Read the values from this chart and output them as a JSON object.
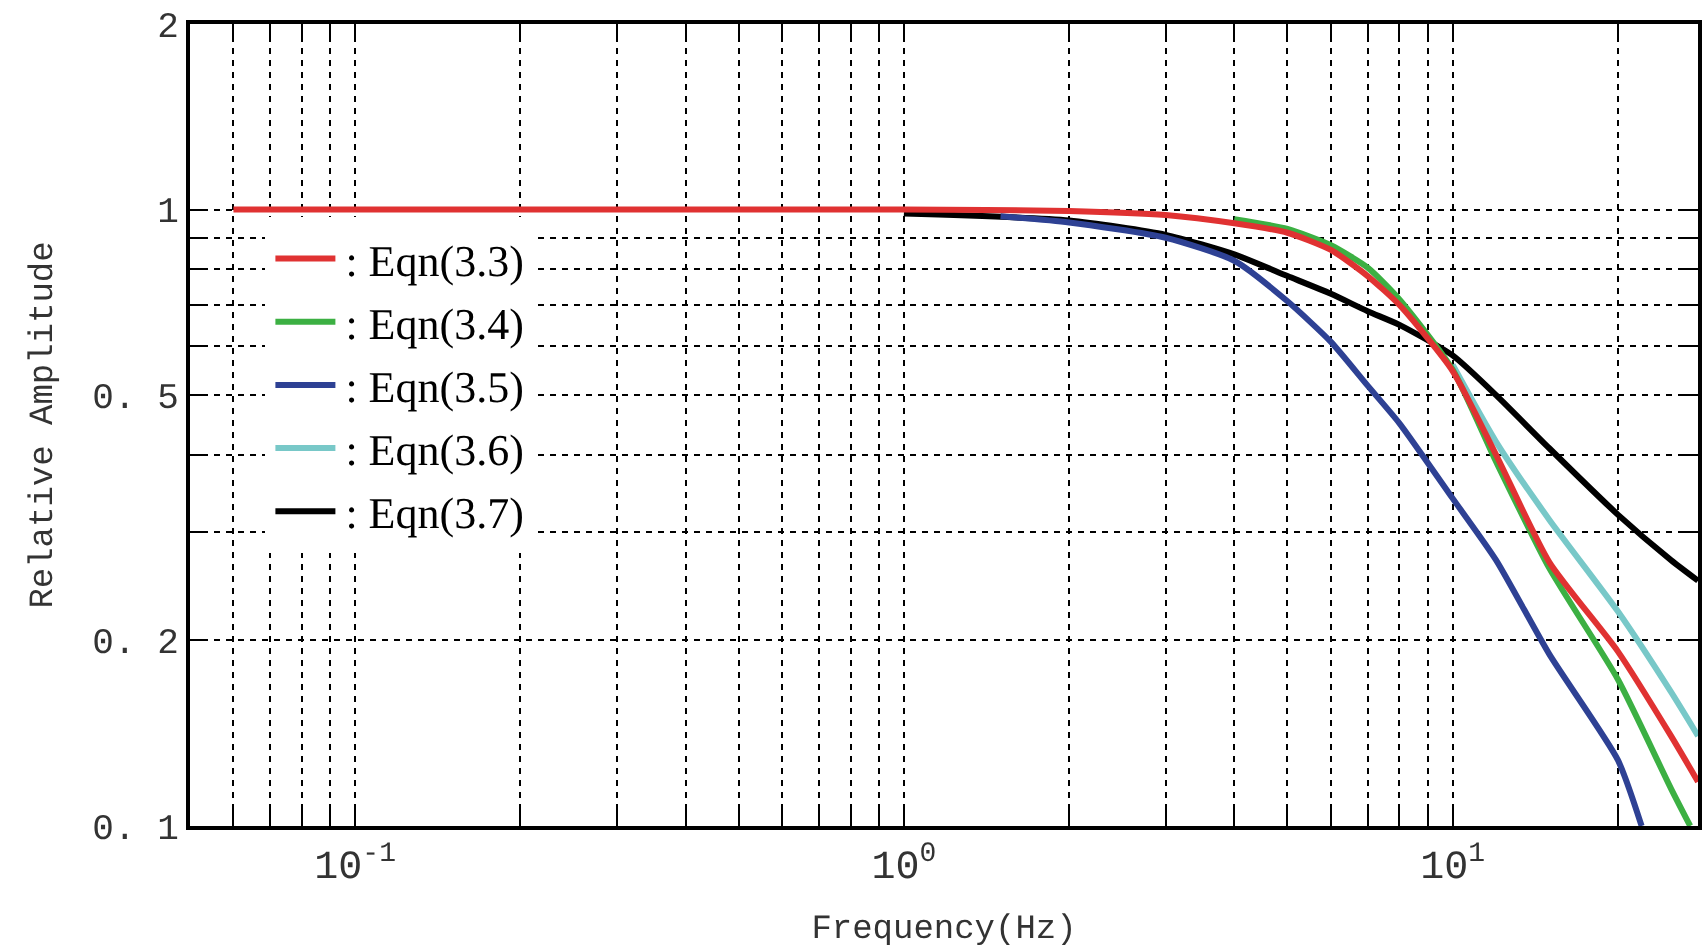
{
  "chart_data": {
    "type": "line",
    "xlabel": "Frequency(Hz)",
    "ylabel": "Relative Amplitude",
    "log": "xy",
    "grid": true,
    "legend": "left",
    "line_style": "solid",
    "marker": "none",
    "xlim": [
      0.05,
      28
    ],
    "ylim": [
      0.1,
      2
    ],
    "xticks": [
      {
        "value": 0.06,
        "label": null
      },
      {
        "value": 0.07,
        "label": null
      },
      {
        "value": 0.08,
        "label": null
      },
      {
        "value": 0.09,
        "label": null
      },
      {
        "value": 0.1,
        "label": "10$^{-1}$"
      },
      {
        "value": 0.2,
        "label": null
      },
      {
        "value": 0.3,
        "label": null
      },
      {
        "value": 0.4,
        "label": null
      },
      {
        "value": 0.5,
        "label": null
      },
      {
        "value": 0.6,
        "label": null
      },
      {
        "value": 0.7,
        "label": null
      },
      {
        "value": 0.8,
        "label": null
      },
      {
        "value": 0.9,
        "label": null
      },
      {
        "value": 1,
        "label": "10$^{0}$"
      },
      {
        "value": 2,
        "label": null
      },
      {
        "value": 3,
        "label": null
      },
      {
        "value": 4,
        "label": null
      },
      {
        "value": 5,
        "label": null
      },
      {
        "value": 6,
        "label": null
      },
      {
        "value": 7,
        "label": null
      },
      {
        "value": 8,
        "label": null
      },
      {
        "value": 9,
        "label": null
      },
      {
        "value": 10,
        "label": "10$^{1}$"
      },
      {
        "value": 20,
        "label": null
      }
    ],
    "yticks": [
      {
        "value": 0.1,
        "label": "0. 1"
      },
      {
        "value": 0.2,
        "label": "0. 2"
      },
      {
        "value": 0.3,
        "label": null
      },
      {
        "value": 0.4,
        "label": null
      },
      {
        "value": 0.5,
        "label": "0. 5"
      },
      {
        "value": 0.6,
        "label": null
      },
      {
        "value": 0.7,
        "label": null
      },
      {
        "value": 0.8,
        "label": null
      },
      {
        "value": 0.9,
        "label": null
      },
      1,
      2
    ],
    "series": [
      {
        "name": ": Eqn(3.3)",
        "color": "#e03232",
        "x": [
          0.06,
          0.1,
          0.5,
          1,
          2,
          3,
          4,
          5,
          6,
          7,
          8,
          10,
          12,
          15,
          20,
          25,
          28
        ],
        "values": [
          1,
          1,
          1,
          1,
          0.995,
          0.98,
          0.95,
          0.917,
          0.86,
          0.78,
          0.7,
          0.547,
          0.4,
          0.268,
          0.192,
          0.14,
          0.118
        ]
      },
      {
        "name": ": Eqn(3.4)",
        "color": "#3cb043",
        "x": [
          4,
          5,
          6,
          7,
          8,
          10,
          12,
          15,
          20,
          25,
          27.1
        ],
        "values": [
          0.965,
          0.93,
          0.875,
          0.805,
          0.715,
          0.55,
          0.39,
          0.262,
          0.173,
          0.115,
          0.1
        ]
      },
      {
        "name": ": Eqn(3.5)",
        "color": "#2e4194",
        "x": [
          1.5,
          2,
          3,
          4,
          5,
          6,
          7,
          8,
          10,
          12,
          15,
          20,
          22.1
        ],
        "values": [
          0.975,
          0.953,
          0.9,
          0.826,
          0.71,
          0.61,
          0.518,
          0.45,
          0.34,
          0.27,
          0.19,
          0.128,
          0.1
        ]
      },
      {
        "name": ": Eqn(3.6)",
        "color": "#78c8c8",
        "x": [
          10,
          12,
          15,
          20,
          25,
          28
        ],
        "values": [
          0.56,
          0.42,
          0.314,
          0.223,
          0.165,
          0.14
        ]
      },
      {
        "name": ": Eqn(3.7)",
        "color": "#000000",
        "x": [
          1,
          2,
          3,
          4,
          5,
          6,
          7,
          8,
          10,
          12,
          15,
          20,
          25,
          28
        ],
        "values": [
          0.985,
          0.96,
          0.91,
          0.846,
          0.78,
          0.73,
          0.684,
          0.65,
          0.58,
          0.5,
          0.41,
          0.32,
          0.27,
          0.25
        ]
      }
    ]
  }
}
